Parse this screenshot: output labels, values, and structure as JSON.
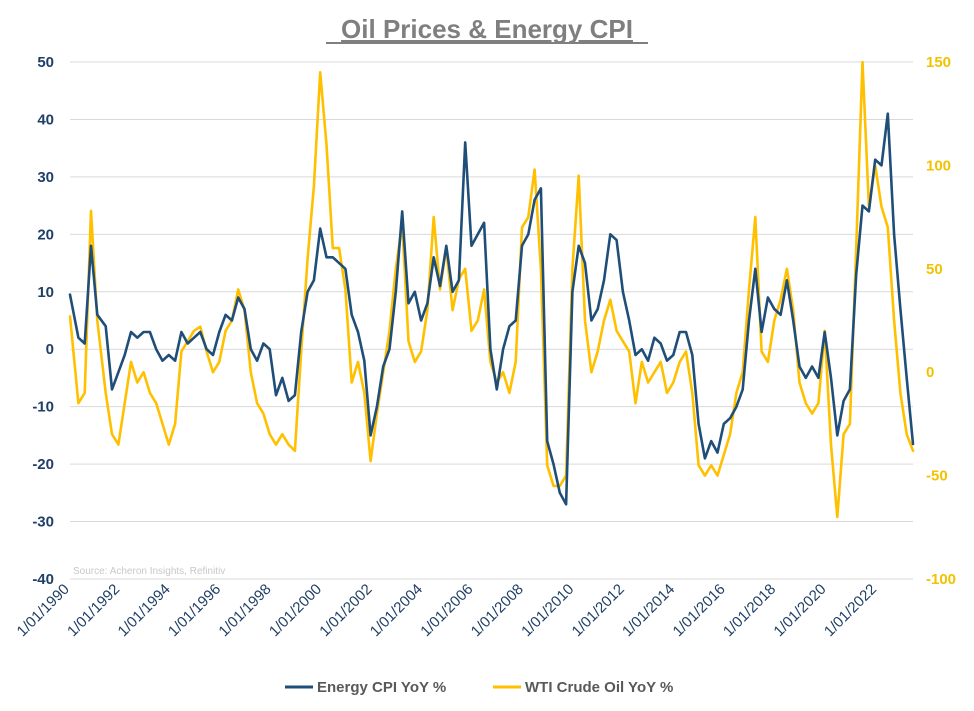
{
  "chart_data": {
    "type": "line",
    "title": "Oil Prices & Energy CPI",
    "source": "Source: Acheron Insights, Refinitiv",
    "x_axis": {
      "type": "date",
      "range": [
        "1990-01",
        "2023-06"
      ],
      "tick_labels": [
        "1/01/1990",
        "1/01/1992",
        "1/01/1994",
        "1/01/1996",
        "1/01/1998",
        "1/01/2000",
        "1/01/2002",
        "1/01/2004",
        "1/01/2006",
        "1/01/2008",
        "1/01/2010",
        "1/01/2012",
        "1/01/2014",
        "1/01/2016",
        "1/01/2018",
        "1/01/2020",
        "1/01/2022"
      ]
    },
    "y_left": {
      "range": [
        -40,
        50
      ],
      "tick_labels": [
        "50",
        "40",
        "30",
        "20",
        "10",
        "0",
        "-10",
        "-20",
        "-30",
        "-40"
      ]
    },
    "y_right": {
      "range": [
        -100,
        150
      ],
      "tick_labels": [
        "150",
        "100",
        "50",
        "0",
        "-50",
        "-100"
      ]
    },
    "grid": "horizontal",
    "legend_position": "bottom",
    "series": [
      {
        "name": "Energy CPI YoY %",
        "axis": "left",
        "color": "#1f4e79",
        "points": [
          [
            "1990-01",
            9.5
          ],
          [
            "1990-05",
            2
          ],
          [
            "1990-08",
            1
          ],
          [
            "1990-11",
            18
          ],
          [
            "1991-02",
            6
          ],
          [
            "1991-06",
            4
          ],
          [
            "1991-09",
            -7
          ],
          [
            "1991-12",
            -4
          ],
          [
            "1992-03",
            -1
          ],
          [
            "1992-06",
            3
          ],
          [
            "1992-09",
            2
          ],
          [
            "1992-12",
            3
          ],
          [
            "1993-03",
            3
          ],
          [
            "1993-06",
            0
          ],
          [
            "1993-09",
            -2
          ],
          [
            "1993-12",
            -1
          ],
          [
            "1994-03",
            -2
          ],
          [
            "1994-06",
            3
          ],
          [
            "1994-09",
            1
          ],
          [
            "1994-12",
            2
          ],
          [
            "1995-03",
            3
          ],
          [
            "1995-06",
            0
          ],
          [
            "1995-09",
            -1
          ],
          [
            "1995-12",
            3
          ],
          [
            "1996-03",
            6
          ],
          [
            "1996-06",
            5
          ],
          [
            "1996-09",
            9
          ],
          [
            "1996-12",
            7
          ],
          [
            "1997-03",
            0
          ],
          [
            "1997-06",
            -2
          ],
          [
            "1997-09",
            1
          ],
          [
            "1997-12",
            0
          ],
          [
            "1998-03",
            -8
          ],
          [
            "1998-06",
            -5
          ],
          [
            "1998-09",
            -9
          ],
          [
            "1998-12",
            -8
          ],
          [
            "1999-03",
            3
          ],
          [
            "1999-06",
            10
          ],
          [
            "1999-09",
            12
          ],
          [
            "1999-12",
            21
          ],
          [
            "2000-03",
            16
          ],
          [
            "2000-06",
            16
          ],
          [
            "2000-09",
            15
          ],
          [
            "2000-12",
            14
          ],
          [
            "2001-03",
            6
          ],
          [
            "2001-06",
            3
          ],
          [
            "2001-09",
            -2
          ],
          [
            "2001-12",
            -15
          ],
          [
            "2002-03",
            -10
          ],
          [
            "2002-06",
            -3
          ],
          [
            "2002-09",
            0
          ],
          [
            "2002-12",
            10
          ],
          [
            "2003-03",
            24
          ],
          [
            "2003-06",
            8
          ],
          [
            "2003-09",
            10
          ],
          [
            "2003-12",
            5
          ],
          [
            "2004-03",
            8
          ],
          [
            "2004-06",
            16
          ],
          [
            "2004-09",
            11
          ],
          [
            "2004-12",
            18
          ],
          [
            "2005-03",
            10
          ],
          [
            "2005-06",
            12
          ],
          [
            "2005-09",
            36
          ],
          [
            "2005-12",
            18
          ],
          [
            "2006-03",
            20
          ],
          [
            "2006-06",
            22
          ],
          [
            "2006-09",
            0
          ],
          [
            "2006-12",
            -7
          ],
          [
            "2007-03",
            0
          ],
          [
            "2007-06",
            4
          ],
          [
            "2007-09",
            5
          ],
          [
            "2007-12",
            18
          ],
          [
            "2008-03",
            20
          ],
          [
            "2008-06",
            26
          ],
          [
            "2008-09",
            28
          ],
          [
            "2008-12",
            -16
          ],
          [
            "2009-03",
            -20
          ],
          [
            "2009-06",
            -25
          ],
          [
            "2009-09",
            -27
          ],
          [
            "2009-12",
            10
          ],
          [
            "2010-03",
            18
          ],
          [
            "2010-06",
            15
          ],
          [
            "2010-09",
            5
          ],
          [
            "2010-12",
            7
          ],
          [
            "2011-03",
            12
          ],
          [
            "2011-06",
            20
          ],
          [
            "2011-09",
            19
          ],
          [
            "2011-12",
            10
          ],
          [
            "2012-03",
            5
          ],
          [
            "2012-06",
            -1
          ],
          [
            "2012-09",
            0
          ],
          [
            "2012-12",
            -2
          ],
          [
            "2013-03",
            2
          ],
          [
            "2013-06",
            1
          ],
          [
            "2013-09",
            -2
          ],
          [
            "2013-12",
            -1
          ],
          [
            "2014-03",
            3
          ],
          [
            "2014-06",
            3
          ],
          [
            "2014-09",
            -1
          ],
          [
            "2014-12",
            -13
          ],
          [
            "2015-03",
            -19
          ],
          [
            "2015-06",
            -16
          ],
          [
            "2015-09",
            -18
          ],
          [
            "2015-12",
            -13
          ],
          [
            "2016-03",
            -12
          ],
          [
            "2016-06",
            -10
          ],
          [
            "2016-09",
            -7
          ],
          [
            "2016-12",
            5
          ],
          [
            "2017-03",
            14
          ],
          [
            "2017-06",
            3
          ],
          [
            "2017-09",
            9
          ],
          [
            "2017-12",
            7
          ],
          [
            "2018-03",
            6
          ],
          [
            "2018-06",
            12
          ],
          [
            "2018-09",
            5
          ],
          [
            "2018-12",
            -3
          ],
          [
            "2019-03",
            -5
          ],
          [
            "2019-06",
            -3
          ],
          [
            "2019-09",
            -5
          ],
          [
            "2019-12",
            3
          ],
          [
            "2020-03",
            -5
          ],
          [
            "2020-06",
            -15
          ],
          [
            "2020-09",
            -9
          ],
          [
            "2020-12",
            -7
          ],
          [
            "2021-03",
            13
          ],
          [
            "2021-06",
            25
          ],
          [
            "2021-09",
            24
          ],
          [
            "2021-12",
            33
          ],
          [
            "2022-03",
            32
          ],
          [
            "2022-06",
            41
          ],
          [
            "2022-09",
            20
          ],
          [
            "2022-12",
            7
          ],
          [
            "2023-03",
            -5
          ],
          [
            "2023-06",
            -16.5
          ]
        ]
      },
      {
        "name": "WTI Crude Oil YoY %",
        "axis": "right",
        "color": "#ffc000",
        "points": [
          [
            "1990-01",
            27
          ],
          [
            "1990-05",
            -15
          ],
          [
            "1990-08",
            -10
          ],
          [
            "1990-11",
            78
          ],
          [
            "1991-02",
            25
          ],
          [
            "1991-06",
            -10
          ],
          [
            "1991-09",
            -30
          ],
          [
            "1991-12",
            -35
          ],
          [
            "1992-03",
            -15
          ],
          [
            "1992-06",
            5
          ],
          [
            "1992-09",
            -5
          ],
          [
            "1992-12",
            0
          ],
          [
            "1993-03",
            -10
          ],
          [
            "1993-06",
            -15
          ],
          [
            "1993-09",
            -25
          ],
          [
            "1993-12",
            -35
          ],
          [
            "1994-03",
            -25
          ],
          [
            "1994-06",
            10
          ],
          [
            "1994-09",
            15
          ],
          [
            "1994-12",
            20
          ],
          [
            "1995-03",
            22
          ],
          [
            "1995-06",
            10
          ],
          [
            "1995-09",
            0
          ],
          [
            "1995-12",
            5
          ],
          [
            "1996-03",
            20
          ],
          [
            "1996-06",
            25
          ],
          [
            "1996-09",
            40
          ],
          [
            "1996-12",
            30
          ],
          [
            "1997-03",
            0
          ],
          [
            "1997-06",
            -15
          ],
          [
            "1997-09",
            -20
          ],
          [
            "1997-12",
            -30
          ],
          [
            "1998-03",
            -35
          ],
          [
            "1998-06",
            -30
          ],
          [
            "1998-09",
            -35
          ],
          [
            "1998-12",
            -38
          ],
          [
            "1999-03",
            10
          ],
          [
            "1999-06",
            55
          ],
          [
            "1999-09",
            90
          ],
          [
            "1999-12",
            145
          ],
          [
            "2000-03",
            110
          ],
          [
            "2000-06",
            60
          ],
          [
            "2000-09",
            60
          ],
          [
            "2000-12",
            40
          ],
          [
            "2001-03",
            -5
          ],
          [
            "2001-06",
            5
          ],
          [
            "2001-09",
            -10
          ],
          [
            "2001-12",
            -43
          ],
          [
            "2002-03",
            -20
          ],
          [
            "2002-06",
            0
          ],
          [
            "2002-09",
            20
          ],
          [
            "2002-12",
            50
          ],
          [
            "2003-03",
            72
          ],
          [
            "2003-06",
            15
          ],
          [
            "2003-09",
            5
          ],
          [
            "2003-12",
            10
          ],
          [
            "2004-03",
            30
          ],
          [
            "2004-06",
            75
          ],
          [
            "2004-09",
            40
          ],
          [
            "2004-12",
            60
          ],
          [
            "2005-03",
            30
          ],
          [
            "2005-06",
            45
          ],
          [
            "2005-09",
            50
          ],
          [
            "2005-12",
            20
          ],
          [
            "2006-03",
            25
          ],
          [
            "2006-06",
            40
          ],
          [
            "2006-09",
            5
          ],
          [
            "2006-12",
            -5
          ],
          [
            "2007-03",
            0
          ],
          [
            "2007-06",
            -10
          ],
          [
            "2007-09",
            5
          ],
          [
            "2007-12",
            70
          ],
          [
            "2008-03",
            75
          ],
          [
            "2008-06",
            98
          ],
          [
            "2008-09",
            50
          ],
          [
            "2008-12",
            -45
          ],
          [
            "2009-03",
            -55
          ],
          [
            "2009-06",
            -55
          ],
          [
            "2009-09",
            -50
          ],
          [
            "2009-12",
            50
          ],
          [
            "2010-03",
            95
          ],
          [
            "2010-06",
            25
          ],
          [
            "2010-09",
            0
          ],
          [
            "2010-12",
            10
          ],
          [
            "2011-03",
            25
          ],
          [
            "2011-06",
            35
          ],
          [
            "2011-09",
            20
          ],
          [
            "2011-12",
            15
          ],
          [
            "2012-03",
            10
          ],
          [
            "2012-06",
            -15
          ],
          [
            "2012-09",
            5
          ],
          [
            "2012-12",
            -5
          ],
          [
            "2013-03",
            0
          ],
          [
            "2013-06",
            5
          ],
          [
            "2013-09",
            -10
          ],
          [
            "2013-12",
            -5
          ],
          [
            "2014-03",
            5
          ],
          [
            "2014-06",
            10
          ],
          [
            "2014-09",
            -10
          ],
          [
            "2014-12",
            -45
          ],
          [
            "2015-03",
            -50
          ],
          [
            "2015-06",
            -45
          ],
          [
            "2015-09",
            -50
          ],
          [
            "2015-12",
            -40
          ],
          [
            "2016-03",
            -30
          ],
          [
            "2016-06",
            -10
          ],
          [
            "2016-09",
            0
          ],
          [
            "2016-12",
            40
          ],
          [
            "2017-03",
            75
          ],
          [
            "2017-06",
            10
          ],
          [
            "2017-09",
            5
          ],
          [
            "2017-12",
            25
          ],
          [
            "2018-03",
            35
          ],
          [
            "2018-06",
            50
          ],
          [
            "2018-09",
            30
          ],
          [
            "2018-12",
            -5
          ],
          [
            "2019-03",
            -15
          ],
          [
            "2019-06",
            -20
          ],
          [
            "2019-09",
            -15
          ],
          [
            "2019-12",
            20
          ],
          [
            "2020-03",
            -35
          ],
          [
            "2020-06",
            -70
          ],
          [
            "2020-09",
            -30
          ],
          [
            "2020-12",
            -25
          ],
          [
            "2021-03",
            60
          ],
          [
            "2021-06",
            150
          ],
          [
            "2021-09",
            80
          ],
          [
            "2021-12",
            100
          ],
          [
            "2022-03",
            80
          ],
          [
            "2022-06",
            70
          ],
          [
            "2022-09",
            25
          ],
          [
            "2022-12",
            -10
          ],
          [
            "2023-03",
            -30
          ],
          [
            "2023-06",
            -38
          ]
        ]
      }
    ]
  }
}
